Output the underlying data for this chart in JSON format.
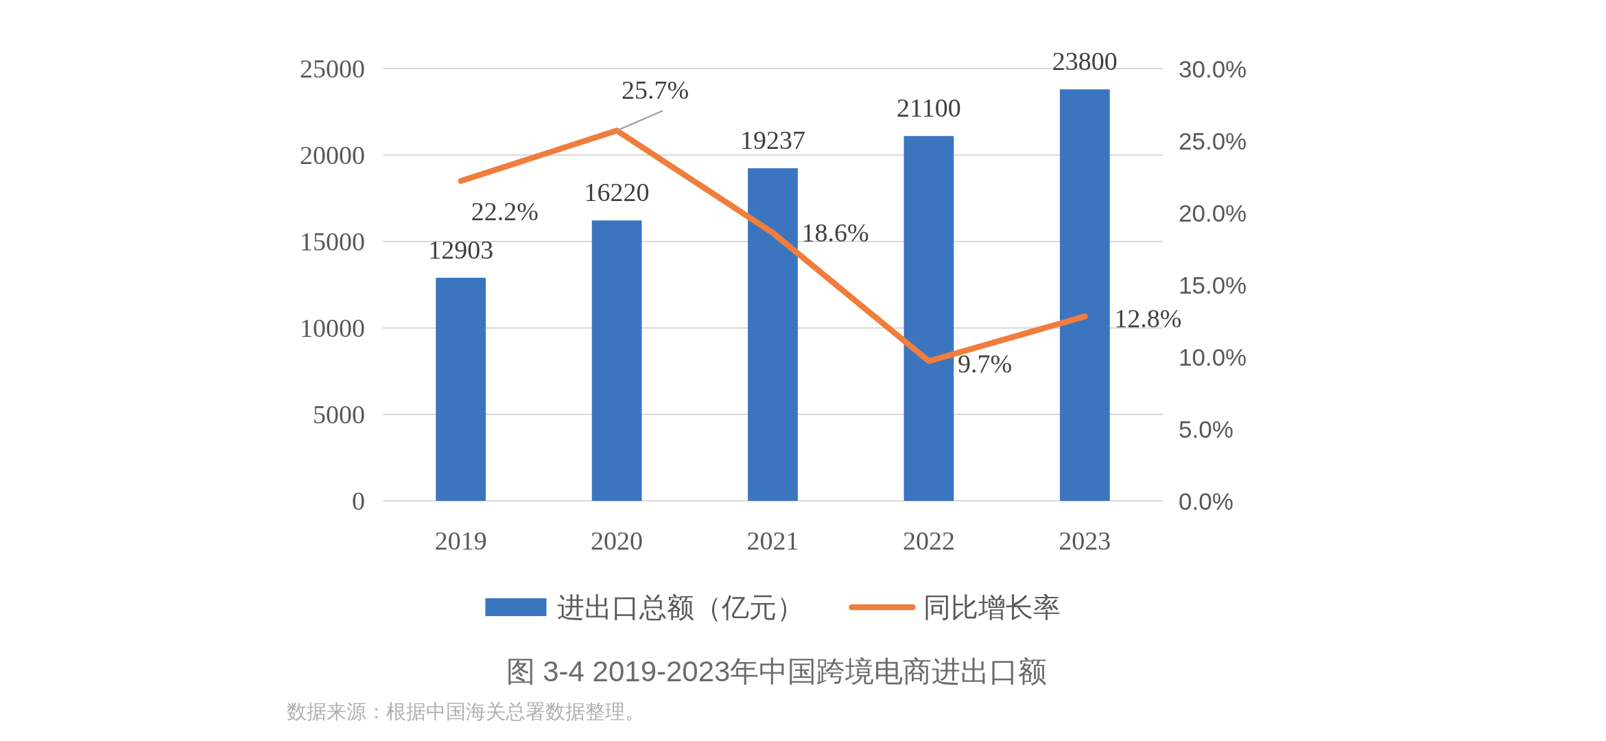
{
  "chart_data": {
    "type": "bar",
    "categories": [
      "2019",
      "2020",
      "2021",
      "2022",
      "2023"
    ],
    "series": [
      {
        "name": "进出口总额（亿元）",
        "color": "#3b75c0",
        "values": [
          12903,
          16220,
          19237,
          21100,
          23800
        ],
        "value_labels": [
          "12903",
          "16220",
          "19237",
          "21100",
          "23800"
        ]
      },
      {
        "name": "同比增长率",
        "type": "line",
        "axis": "y2",
        "color": "#f07d3c",
        "values": [
          22.2,
          25.7,
          18.6,
          9.7,
          12.8
        ],
        "value_labels": [
          "22.2%",
          "25.7%",
          "18.6%",
          "9.7%",
          "12.8%"
        ]
      }
    ],
    "ylim": [
      0,
      25000
    ],
    "yticks": [
      0,
      5000,
      10000,
      15000,
      20000,
      25000
    ],
    "y2lim": [
      0,
      30
    ],
    "y2ticks": [
      {
        "value": 0,
        "label": "0.0%"
      },
      {
        "value": 5,
        "label": "5.0%"
      },
      {
        "value": 10,
        "label": "10.0%"
      },
      {
        "value": 15,
        "label": "15.0%"
      },
      {
        "value": 20,
        "label": "20.0%"
      },
      {
        "value": 25,
        "label": "25.0%"
      },
      {
        "value": 30,
        "label": "30.0%"
      }
    ],
    "grid": "y",
    "legend": "bottom",
    "annotations": [
      "图 3-4  2019-2023年中国跨境电商进出口额",
      "数据来源：根据中国海关总署数据整理。"
    ]
  }
}
